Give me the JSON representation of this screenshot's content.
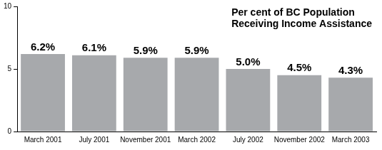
{
  "chart_data": {
    "type": "bar",
    "title": [
      "Per cent of BC Population",
      "Receiving Income Assistance"
    ],
    "categories": [
      "March 2001",
      "July 2001",
      "November 2001",
      "March 2002",
      "July 2002",
      "November 2002",
      "March 2003"
    ],
    "values": [
      6.2,
      6.1,
      5.9,
      5.9,
      5.0,
      4.5,
      4.3
    ],
    "value_labels": [
      "6.2%",
      "6.1%",
      "5.9%",
      "5.9%",
      "5.0%",
      "4.5%",
      "4.3%"
    ],
    "color": "#a7a9ac",
    "ylim": [
      0,
      10
    ],
    "yticks": [
      0,
      5,
      10
    ],
    "grid": false,
    "data_labels": true
  }
}
